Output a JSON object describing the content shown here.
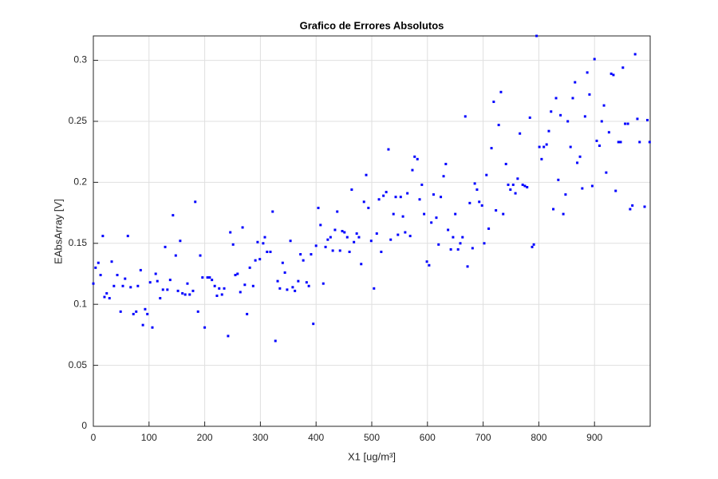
{
  "chart_data": {
    "type": "scatter",
    "title": "Grafico de Errores Absolutos",
    "xlabel": "X1 [ug/m³]",
    "ylabel": "EAbsArray [V]",
    "xlim": [
      0,
      1000
    ],
    "ylim": [
      0,
      0.32
    ],
    "xticks": [
      0,
      100,
      200,
      300,
      400,
      500,
      600,
      700,
      800,
      900
    ],
    "yticks": [
      0,
      0.05,
      0.1,
      0.15,
      0.2,
      0.25,
      0.3
    ],
    "grid": true,
    "series": [
      {
        "color": "#0000ff",
        "x": [
          0,
          4,
          9,
          13,
          17,
          20,
          24,
          29,
          33,
          37,
          43,
          49,
          53,
          57,
          62,
          67,
          72,
          77,
          80,
          85,
          89,
          93,
          97,
          102,
          106,
          112,
          115,
          120,
          125,
          129,
          133,
          138,
          143,
          148,
          152,
          156,
          160,
          165,
          169,
          173,
          179,
          183,
          188,
          192,
          196,
          200,
          205,
          209,
          213,
          218,
          222,
          226,
          231,
          235,
          242,
          246,
          251,
          255,
          259,
          264,
          268,
          272,
          276,
          281,
          287,
          291,
          295,
          299,
          305,
          308,
          312,
          318,
          322,
          327,
          331,
          335,
          340,
          344,
          348,
          354,
          358,
          362,
          368,
          372,
          377,
          383,
          387,
          391,
          395,
          400,
          404,
          408,
          413,
          417,
          421,
          426,
          430,
          434,
          438,
          443,
          447,
          451,
          456,
          460,
          464,
          468,
          473,
          477,
          481,
          486,
          490,
          494,
          499,
          504,
          509,
          513,
          517,
          521,
          526,
          530,
          534,
          539,
          543,
          547,
          552,
          556,
          560,
          564,
          569,
          573,
          577,
          582,
          586,
          590,
          594,
          599,
          603,
          607,
          611,
          616,
          620,
          624,
          629,
          633,
          637,
          642,
          646,
          650,
          655,
          659,
          663,
          668,
          672,
          676,
          681,
          685,
          689,
          693,
          698,
          702,
          706,
          710,
          715,
          719,
          723,
          728,
          732,
          736,
          741,
          745,
          749,
          754,
          758,
          762,
          766,
          771,
          775,
          779,
          784,
          788,
          791,
          796,
          801,
          805,
          809,
          814,
          818,
          822,
          826,
          831,
          835,
          839,
          844,
          848,
          852,
          857,
          861,
          865,
          869,
          874,
          878,
          883,
          887,
          891,
          896,
          900,
          904,
          909,
          913,
          917,
          921,
          926,
          930,
          934,
          938,
          943,
          947,
          951,
          955,
          960,
          964,
          968,
          973,
          977,
          981,
          990,
          995,
          999
        ],
        "values": [
          0.117,
          0.13,
          0.134,
          0.124,
          0.156,
          0.106,
          0.109,
          0.105,
          0.135,
          0.115,
          0.124,
          0.094,
          0.115,
          0.121,
          0.156,
          0.114,
          0.092,
          0.094,
          0.115,
          0.128,
          0.083,
          0.096,
          0.092,
          0.118,
          0.081,
          0.125,
          0.119,
          0.105,
          0.112,
          0.147,
          0.112,
          0.12,
          0.173,
          0.14,
          0.111,
          0.152,
          0.109,
          0.108,
          0.117,
          0.108,
          0.111,
          0.184,
          0.094,
          0.14,
          0.122,
          0.081,
          0.122,
          0.122,
          0.12,
          0.115,
          0.107,
          0.113,
          0.108,
          0.113,
          0.074,
          0.159,
          0.149,
          0.124,
          0.125,
          0.11,
          0.163,
          0.116,
          0.092,
          0.13,
          0.115,
          0.136,
          0.151,
          0.137,
          0.15,
          0.155,
          0.143,
          0.143,
          0.176,
          0.07,
          0.119,
          0.113,
          0.134,
          0.126,
          0.112,
          0.152,
          0.114,
          0.111,
          0.119,
          0.141,
          0.136,
          0.118,
          0.115,
          0.141,
          0.084,
          0.148,
          0.179,
          0.165,
          0.117,
          0.147,
          0.153,
          0.155,
          0.144,
          0.161,
          0.176,
          0.144,
          0.16,
          0.159,
          0.155,
          0.143,
          0.194,
          0.151,
          0.158,
          0.155,
          0.133,
          0.184,
          0.206,
          0.179,
          0.152,
          0.113,
          0.158,
          0.186,
          0.143,
          0.189,
          0.192,
          0.227,
          0.153,
          0.174,
          0.188,
          0.157,
          0.188,
          0.172,
          0.159,
          0.191,
          0.156,
          0.21,
          0.221,
          0.219,
          0.186,
          0.198,
          0.174,
          0.135,
          0.132,
          0.167,
          0.19,
          0.171,
          0.149,
          0.188,
          0.205,
          0.215,
          0.161,
          0.145,
          0.155,
          0.174,
          0.145,
          0.15,
          0.155,
          0.254,
          0.131,
          0.183,
          0.146,
          0.199,
          0.194,
          0.184,
          0.181,
          0.15,
          0.206,
          0.162,
          0.228,
          0.266,
          0.177,
          0.247,
          0.274,
          0.174,
          0.215,
          0.198,
          0.194,
          0.198,
          0.191,
          0.203,
          0.24,
          0.198,
          0.197,
          0.196,
          0.253,
          0.147,
          0.149,
          0.32,
          0.229,
          0.219,
          0.229,
          0.231,
          0.242,
          0.258,
          0.178,
          0.269,
          0.202,
          0.255,
          0.174,
          0.19,
          0.25,
          0.229,
          0.269,
          0.282,
          0.216,
          0.221,
          0.195,
          0.254,
          0.29,
          0.272,
          0.197,
          0.301,
          0.234,
          0.23,
          0.25,
          0.263,
          0.208,
          0.241,
          0.289,
          0.288,
          0.193,
          0.233,
          0.233,
          0.294,
          0.248,
          0.248,
          0.178,
          0.181,
          0.305,
          0.252,
          0.233,
          0.18,
          0.251,
          0.233
        ]
      }
    ]
  }
}
